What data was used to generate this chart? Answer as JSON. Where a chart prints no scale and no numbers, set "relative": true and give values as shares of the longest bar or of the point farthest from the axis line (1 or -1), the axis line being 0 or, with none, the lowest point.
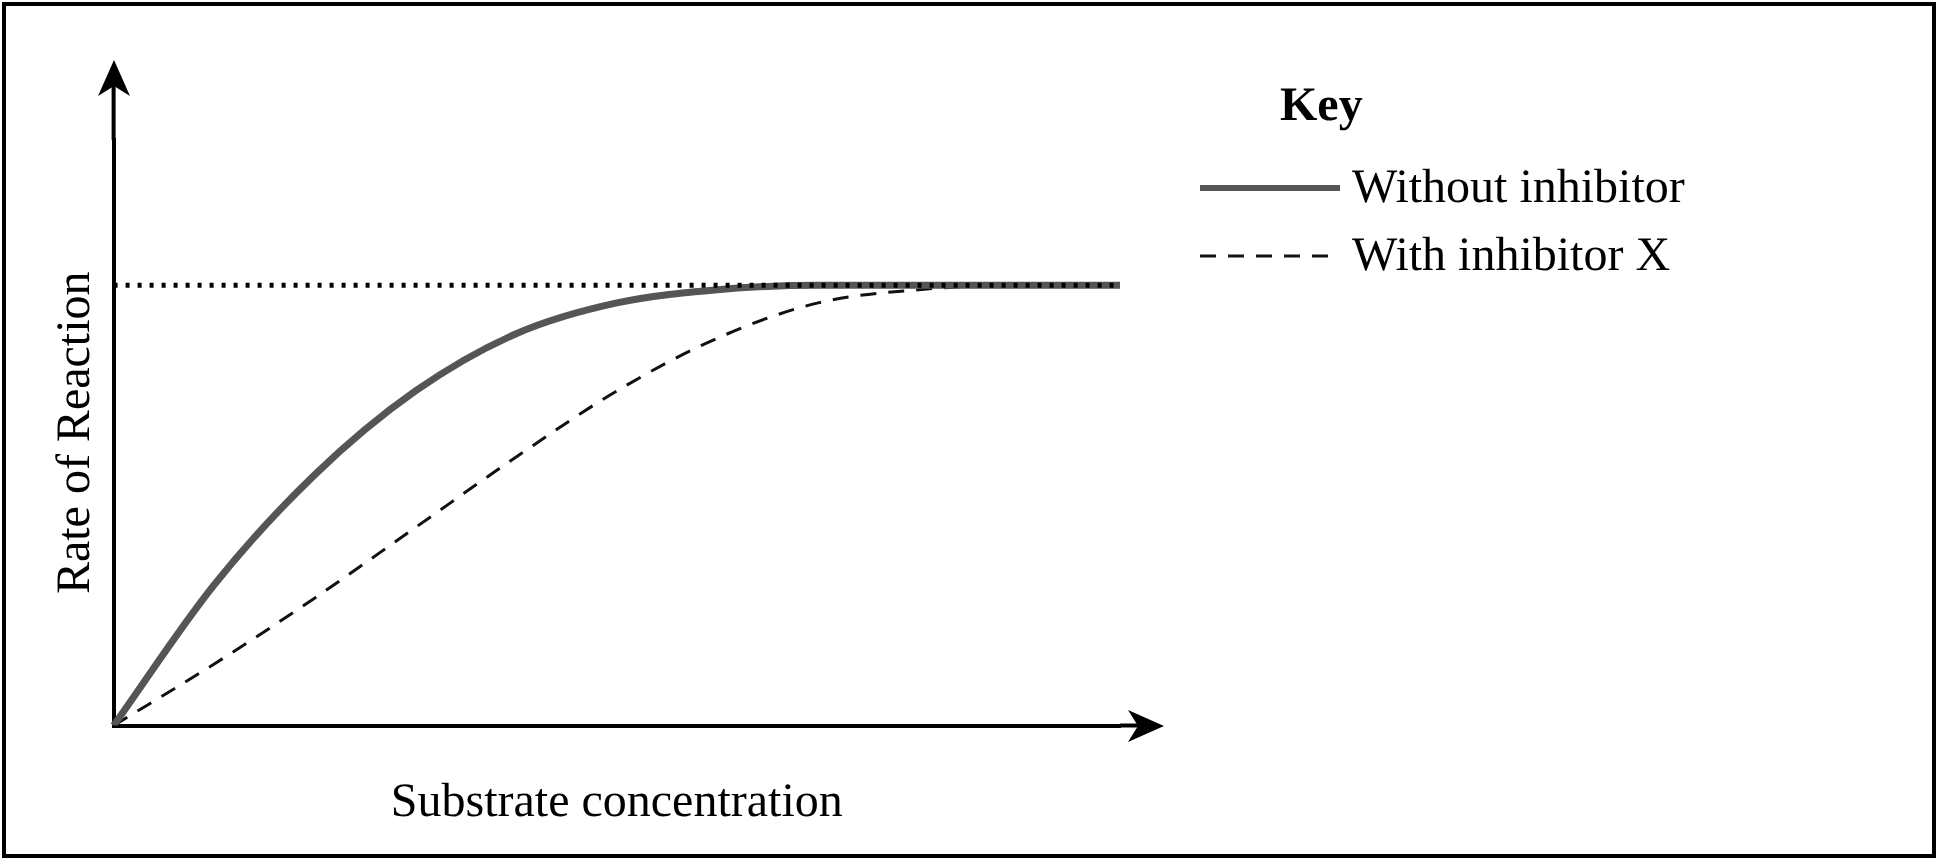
{
  "chart_data": {
    "type": "line",
    "xlabel": "Substrate concentration",
    "ylabel": "Rate of Reaction",
    "legend_title": "Key",
    "relative": true,
    "legend": "top right",
    "grid": false,
    "marker": "none",
    "categories": [
      null,
      null,
      null,
      null,
      null,
      null,
      null,
      null,
      null,
      null,
      null
    ],
    "series": [
      {
        "name": "Without inhibitor",
        "color": "#555555",
        "line_style": "solid",
        "values": [
          0,
          0.32,
          0.57,
          0.76,
          0.89,
          0.96,
          0.99,
          1,
          1,
          1,
          1
        ]
      },
      {
        "name": "With inhibitor X",
        "color": "#111111",
        "line_style": "dashed",
        "values": [
          0,
          0.14,
          0.29,
          0.45,
          0.61,
          0.76,
          0.88,
          0.96,
          0.99,
          1,
          1
        ]
      }
    ],
    "ref_lines": [
      {
        "axis": "y",
        "value": 1,
        "line_style": "dotted",
        "color": "#000000"
      }
    ]
  }
}
